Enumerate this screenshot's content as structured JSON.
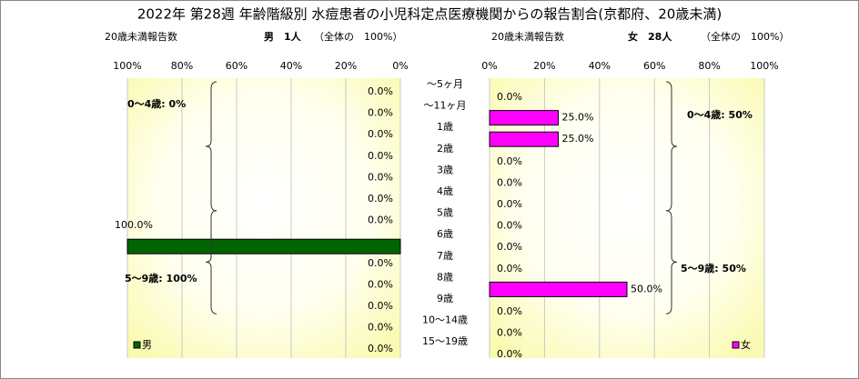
{
  "title": "2022年 第28週 年齢階級別 水痘患者の小児科定点医療機関からの報告割合(京都府、20歳未満)",
  "categories": [
    "〜5ヶ月",
    "〜11ヶ月",
    "1歳",
    "2歳",
    "3歳",
    "4歳",
    "5歳",
    "6歳",
    "7歳",
    "8歳",
    "9歳",
    "10〜14歳",
    "15〜19歳"
  ],
  "chart_data": [
    {
      "type": "bar",
      "orientation": "horizontal",
      "x_reversed": true,
      "subtitle": "20歳未満報告数",
      "count_label": "男　1人",
      "share_label": "（全体の　100%）",
      "series": [
        {
          "name": "男",
          "color": "#006400",
          "values": [
            0,
            0,
            0,
            0,
            0,
            0,
            0,
            100,
            0,
            0,
            0,
            0,
            0
          ],
          "value_labels": [
            "0.0%",
            "0.0%",
            "0.0%",
            "0.0%",
            "0.0%",
            "0.0%",
            "0.0%",
            "100.0%",
            "0.0%",
            "0.0%",
            "0.0%",
            "0.0%",
            "0.0%"
          ]
        }
      ],
      "annotations": [
        "0〜4歳: 0%",
        "5〜9歳: 100%"
      ],
      "xlim": [
        0,
        100
      ],
      "xticks": [
        {
          "value": 0,
          "label": "0%"
        },
        {
          "value": 20,
          "label": "20%"
        },
        {
          "value": 40,
          "label": "40%"
        },
        {
          "value": 60,
          "label": "60%"
        },
        {
          "value": 80,
          "label": "80%"
        },
        {
          "value": 100,
          "label": "100%"
        }
      ],
      "grid": true,
      "legend": "lower left"
    },
    {
      "type": "bar",
      "orientation": "horizontal",
      "x_reversed": false,
      "subtitle": "20歳未満報告数",
      "count_label": "女　28人",
      "share_label": "（全体の　100%）",
      "series": [
        {
          "name": "女",
          "color": "#ff00ff",
          "values": [
            0,
            25,
            25,
            0,
            0,
            0,
            0,
            0,
            0,
            50,
            0,
            0,
            0
          ],
          "value_labels": [
            "0.0%",
            "25.0%",
            "25.0%",
            "0.0%",
            "0.0%",
            "0.0%",
            "0.0%",
            "0.0%",
            "0.0%",
            "50.0%",
            "0.0%",
            "0.0%",
            "0.0%"
          ]
        }
      ],
      "annotations": [
        "0〜4歳: 50%",
        "5〜9歳: 50%"
      ],
      "xlim": [
        0,
        100
      ],
      "xticks": [
        {
          "value": 0,
          "label": "0%"
        },
        {
          "value": 20,
          "label": "20%"
        },
        {
          "value": 40,
          "label": "40%"
        },
        {
          "value": 60,
          "label": "60%"
        },
        {
          "value": 80,
          "label": "80%"
        },
        {
          "value": 100,
          "label": "100%"
        }
      ],
      "grid": true,
      "legend": "lower right"
    }
  ]
}
